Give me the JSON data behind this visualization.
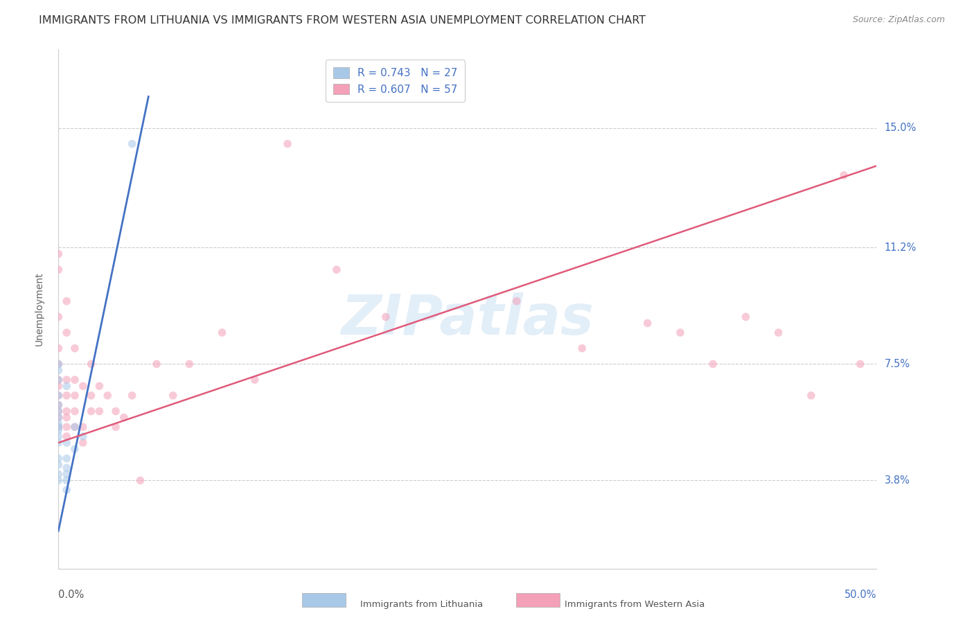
{
  "title": "IMMIGRANTS FROM LITHUANIA VS IMMIGRANTS FROM WESTERN ASIA UNEMPLOYMENT CORRELATION CHART",
  "source": "Source: ZipAtlas.com",
  "xlabel_bottom_left": "0.0%",
  "xlabel_bottom_right": "50.0%",
  "ylabel": "Unemployment",
  "ytick_labels": [
    "3.8%",
    "7.5%",
    "11.2%",
    "15.0%"
  ],
  "ytick_values": [
    3.8,
    7.5,
    11.2,
    15.0
  ],
  "xlim": [
    0.0,
    50.0
  ],
  "ylim": [
    1.0,
    17.5
  ],
  "legend_entry_blue": "R = 0.743   N = 27",
  "legend_entry_pink": "R = 0.607   N = 57",
  "legend_label_left": "Immigrants from Lithuania",
  "legend_label_right": "Immigrants from Western Asia",
  "watermark": "ZIPatlas",
  "blue_scatter_x": [
    0.0,
    0.0,
    0.0,
    0.0,
    0.0,
    0.0,
    0.0,
    0.0,
    0.0,
    0.0,
    0.0,
    0.0,
    0.0,
    0.0,
    0.0,
    0.0,
    0.5,
    0.5,
    0.5,
    0.5,
    0.5,
    0.5,
    0.5,
    1.0,
    1.0,
    1.5,
    4.5
  ],
  "blue_scatter_y": [
    5.0,
    5.2,
    5.4,
    5.5,
    5.6,
    5.8,
    6.0,
    6.2,
    6.5,
    4.5,
    4.3,
    4.0,
    3.8,
    7.0,
    7.3,
    7.5,
    5.0,
    4.5,
    4.2,
    4.0,
    3.8,
    3.5,
    6.8,
    5.5,
    4.8,
    5.2,
    14.5
  ],
  "pink_scatter_x": [
    0.0,
    0.0,
    0.0,
    0.0,
    0.0,
    0.0,
    0.0,
    0.0,
    0.0,
    0.0,
    0.0,
    0.0,
    0.5,
    0.5,
    0.5,
    0.5,
    0.5,
    0.5,
    0.5,
    0.5,
    1.0,
    1.0,
    1.0,
    1.0,
    1.0,
    1.5,
    1.5,
    1.5,
    2.0,
    2.0,
    2.0,
    2.5,
    2.5,
    3.0,
    3.5,
    3.5,
    4.0,
    4.5,
    5.0,
    6.0,
    7.0,
    8.0,
    10.0,
    12.0,
    14.0,
    17.0,
    20.0,
    28.0,
    32.0,
    36.0,
    38.0,
    40.0,
    42.0,
    44.0,
    46.0,
    48.0,
    49.0
  ],
  "pink_scatter_y": [
    5.5,
    5.8,
    6.0,
    6.2,
    6.5,
    6.8,
    7.0,
    7.5,
    8.0,
    9.0,
    10.5,
    11.0,
    5.2,
    5.5,
    5.8,
    6.0,
    6.5,
    7.0,
    8.5,
    9.5,
    5.5,
    6.0,
    6.5,
    7.0,
    8.0,
    5.0,
    5.5,
    6.8,
    6.0,
    6.5,
    7.5,
    6.0,
    6.8,
    6.5,
    5.5,
    6.0,
    5.8,
    6.5,
    3.8,
    7.5,
    6.5,
    7.5,
    8.5,
    7.0,
    14.5,
    10.5,
    9.0,
    9.5,
    8.0,
    8.8,
    8.5,
    7.5,
    9.0,
    8.5,
    6.5,
    13.5,
    7.5
  ],
  "blue_line_x_start": 0.0,
  "blue_line_x_end": 5.5,
  "blue_line_y_start": 2.2,
  "blue_line_y_end": 16.0,
  "pink_line_x_start": 0.0,
  "pink_line_x_end": 50.0,
  "pink_line_y_start": 5.0,
  "pink_line_y_end": 13.8,
  "scatter_size": 70,
  "scatter_alpha": 0.55,
  "line_color_blue": "#4472c4",
  "line_color_pink": "#e05a7a",
  "scatter_color_blue": "#a8c8e8",
  "scatter_color_pink": "#f4a0b8",
  "grid_color": "#cccccc",
  "background_color": "#ffffff",
  "title_fontsize": 11.5,
  "source_fontsize": 9,
  "axis_label_fontsize": 10,
  "tick_label_fontsize": 10.5,
  "legend_fontsize": 11,
  "watermark_color": "#d0e4f4",
  "watermark_alpha": 0.6,
  "ytick_color": "#4472c4",
  "xtick_color": "#555555"
}
